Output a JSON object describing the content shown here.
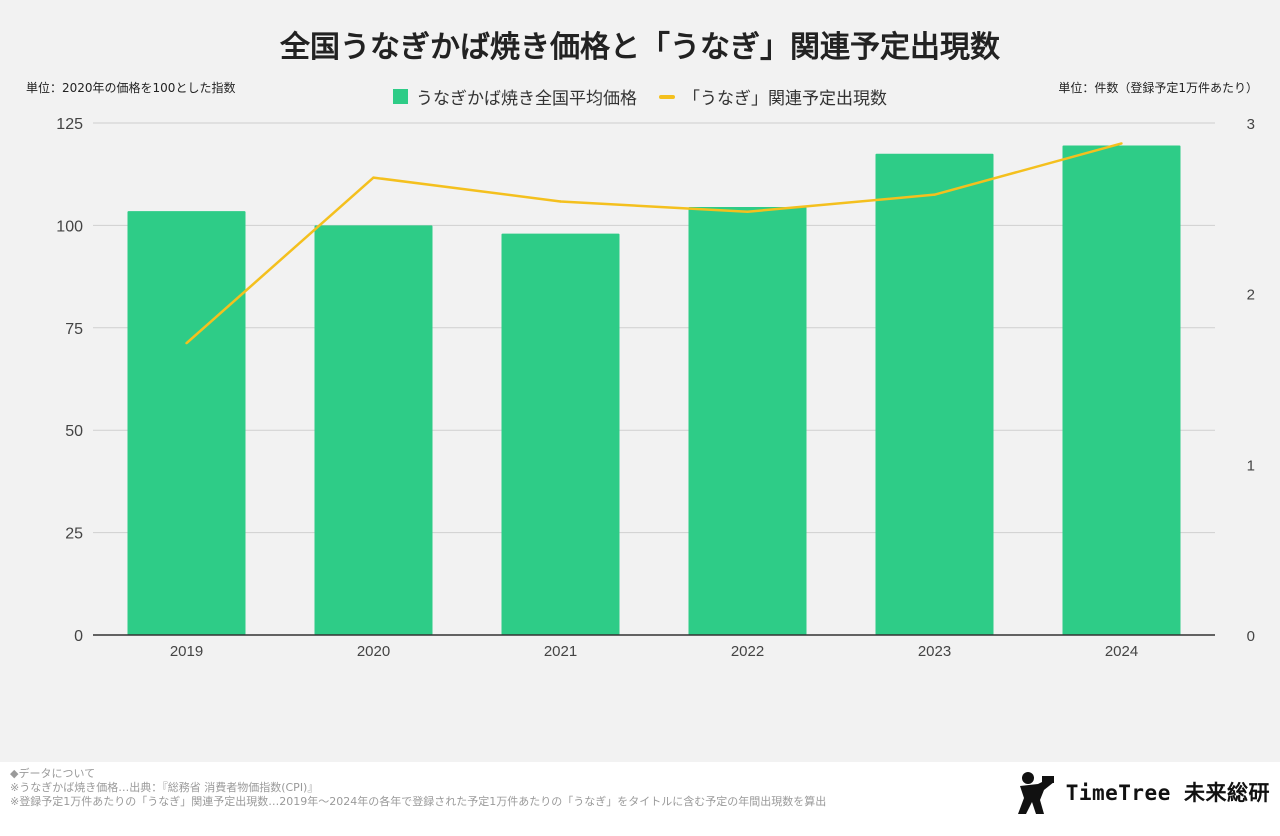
{
  "title": "全国うなぎかば焼き価格と「うなぎ」関連予定出現数",
  "unit_left": "単位：2020年の価格を100とした指数",
  "unit_right": "単位：件数（登録予定1万件あたり）",
  "legend": {
    "bar_label": "うなぎかば焼き全国平均価格",
    "line_label": "「うなぎ」関連予定出現数"
  },
  "colors": {
    "bar": "#2ecc87",
    "line": "#f4c01e",
    "grid": "#cfcfcf",
    "axis": "#333333"
  },
  "chart_data": {
    "type": "bar",
    "title": "全国うなぎかば焼き価格と「うなぎ」関連予定出現数",
    "categories": [
      "2019",
      "2020",
      "2021",
      "2022",
      "2023",
      "2024"
    ],
    "series": [
      {
        "name": "うなぎかば焼き全国平均価格",
        "type": "bar",
        "axis": "left",
        "values": [
          103.5,
          100,
          98,
          104.5,
          117.5,
          119.5
        ]
      },
      {
        "name": "「うなぎ」関連予定出現数",
        "type": "line",
        "axis": "right",
        "values": [
          1.71,
          2.68,
          2.54,
          2.48,
          2.58,
          2.88
        ]
      }
    ],
    "y_left": {
      "range": [
        0,
        125
      ],
      "ticks": [
        0,
        25,
        50,
        75,
        100,
        125
      ]
    },
    "y_right": {
      "range": [
        0,
        3
      ],
      "ticks": [
        0,
        1,
        2,
        3
      ]
    },
    "grid": true,
    "legend_position": "top"
  },
  "notes": [
    "◆データについて",
    "※うなぎかば焼き価格…出典：『総務省 消費者物価指数(CPI)』",
    "※登録予定1万件あたりの「うなぎ」関連予定出現数…2019年～2024年の各年で登録された予定1万件あたりの「うなぎ」をタイトルに含む予定の年間出現数を算出"
  ],
  "logo": {
    "text": "TimeTree 未来総研"
  }
}
